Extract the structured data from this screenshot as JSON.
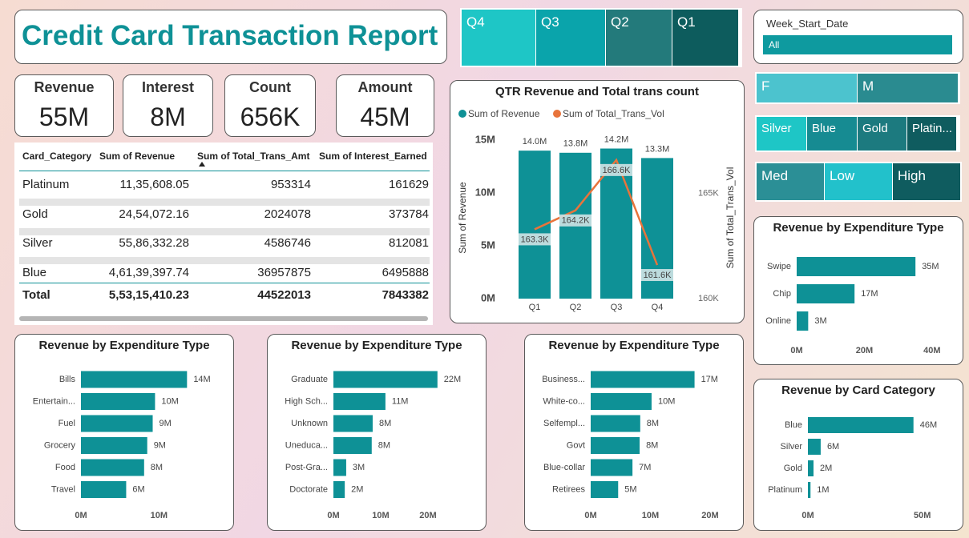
{
  "header": {
    "title": "Credit Card Transaction Report"
  },
  "kpis": [
    {
      "label": "Revenue",
      "value": "55M"
    },
    {
      "label": "Interest",
      "value": "8M"
    },
    {
      "label": "Count",
      "value": "656K"
    },
    {
      "label": "Amount",
      "value": "45M"
    }
  ],
  "quarter_slicer": {
    "items": [
      "Q4",
      "Q3",
      "Q2",
      "Q1"
    ],
    "colors": [
      "#1ec6c6",
      "#0aa4ab",
      "#237a7b",
      "#0d5c5d"
    ]
  },
  "date_slicer": {
    "label": "Week_Start_Date",
    "value": "All"
  },
  "gender_slicer": {
    "items": [
      "F",
      "M"
    ],
    "colors": [
      "#4cc3ce",
      "#2a8b90"
    ]
  },
  "category_slicer": {
    "items": [
      "Silver",
      "Blue",
      "Gold",
      "Platin..."
    ],
    "colors": [
      "#1ec6c6",
      "#168b92",
      "#1c7a7f",
      "#0f5c5f"
    ]
  },
  "income_slicer": {
    "items": [
      "Med",
      "Low",
      "High"
    ],
    "colors": [
      "#2b8f96",
      "#22c1cb",
      "#0f5c5f"
    ]
  },
  "table": {
    "columns": [
      "Card_Category",
      "Sum of Revenue",
      "Sum of Total_Trans_Amt",
      "Sum of Interest_Earned"
    ],
    "rows": [
      [
        "Platinum",
        "11,35,608.05",
        "953314",
        "161629"
      ],
      [
        "Gold",
        "24,54,072.16",
        "2024078",
        "373784"
      ],
      [
        "Silver",
        "55,86,332.28",
        "4586746",
        "812081"
      ],
      [
        "Blue",
        "4,61,39,397.74",
        "36957875",
        "6495888"
      ]
    ],
    "total": [
      "Total",
      "5,53,15,410.23",
      "44522013",
      "7843382"
    ]
  },
  "chart_data": [
    {
      "type": "combo",
      "title": "QTR Revenue and Total trans count",
      "categories": [
        "Q1",
        "Q2",
        "Q3",
        "Q4"
      ],
      "y_label": "Sum of Revenue",
      "y2_label": "Sum of Total_Trans_Vol",
      "series": [
        {
          "name": "Sum of Revenue",
          "kind": "bar",
          "color": "#0e9196",
          "values": [
            14000000,
            13800000,
            14200000,
            13300000
          ],
          "value_labels": [
            "14.0M",
            "13.8M",
            "14.2M",
            "13.3M"
          ]
        },
        {
          "name": "Sum of Total_Trans_Vol",
          "kind": "line",
          "axis": "y2",
          "color": "#e8743b",
          "values": [
            163300,
            164200,
            166600,
            161600
          ],
          "value_labels": [
            "163.3K",
            "164.2K",
            "166.6K",
            "161.6K"
          ]
        }
      ],
      "ylim": [
        0,
        15300000
      ],
      "yticks": [
        {
          "value": 0,
          "label": "0M"
        },
        {
          "value": 5000000,
          "label": "5M"
        },
        {
          "value": 10000000,
          "label": "10M"
        },
        {
          "value": 15000000,
          "label": "15M"
        }
      ],
      "y2lim": [
        160000,
        167700
      ],
      "y2ticks": [
        {
          "value": 160000,
          "label": "160K"
        },
        {
          "value": 165000,
          "label": "165K"
        }
      ]
    },
    {
      "type": "bar",
      "orientation": "horizontal",
      "title": "Revenue by Expenditure Type",
      "color": "#0e9196",
      "categories": [
        "Swipe",
        "Chip",
        "Online"
      ],
      "values": [
        35100000,
        17100000,
        3400000
      ],
      "value_labels": [
        "35M",
        "17M",
        "3M"
      ],
      "xlim": [
        0,
        45000000
      ],
      "xticks": [
        {
          "value": 0,
          "label": "0M"
        },
        {
          "value": 20000000,
          "label": "20M"
        },
        {
          "value": 40000000,
          "label": "40M"
        }
      ]
    },
    {
      "type": "bar",
      "orientation": "horizontal",
      "title": "Revenue by Card Category",
      "color": "#0e9196",
      "categories": [
        "Blue",
        "Silver",
        "Gold",
        "Platinum"
      ],
      "values": [
        46139397.74,
        5586332.28,
        2454072.16,
        1135608.05
      ],
      "value_labels": [
        "46M",
        "6M",
        "2M",
        "1M"
      ],
      "xlim": [
        0,
        62000000
      ],
      "xticks": [
        {
          "value": 0,
          "label": "0M"
        },
        {
          "value": 50000000,
          "label": "50M"
        }
      ]
    },
    {
      "type": "bar",
      "orientation": "horizontal",
      "title": "Revenue by Expenditure Type",
      "color": "#0e9196",
      "categories": [
        "Bills",
        "Entertain...",
        "Fuel",
        "Grocery",
        "Food",
        "Travel"
      ],
      "values": [
        13600000,
        9500000,
        9200000,
        8500000,
        8100000,
        5800000
      ],
      "value_labels": [
        "14M",
        "10M",
        "9M",
        "9M",
        "8M",
        "6M"
      ],
      "xlim": [
        0,
        18500000
      ],
      "xticks": [
        {
          "value": 0,
          "label": "0M"
        },
        {
          "value": 10000000,
          "label": "10M"
        }
      ]
    },
    {
      "type": "bar",
      "orientation": "horizontal",
      "title": "Revenue by Expenditure Type",
      "color": "#0e9196",
      "categories": [
        "Graduate",
        "High Sch...",
        "Unknown",
        "Uneduca...",
        "Post-Gra...",
        "Doctorate"
      ],
      "values": [
        22000000,
        11000000,
        8300000,
        8100000,
        2700000,
        2400000
      ],
      "value_labels": [
        "22M",
        "11M",
        "8M",
        "8M",
        "3M",
        "2M"
      ],
      "xlim": [
        0,
        30000000
      ],
      "xticks": [
        {
          "value": 0,
          "label": "0M"
        },
        {
          "value": 10000000,
          "label": "10M"
        },
        {
          "value": 20000000,
          "label": "20M"
        }
      ]
    },
    {
      "type": "bar",
      "orientation": "horizontal",
      "title": "Revenue by Expenditure Type",
      "color": "#0e9196",
      "categories": [
        "Business...",
        "White-co...",
        "Selfempl...",
        "Govt",
        "Blue-collar",
        "Retirees"
      ],
      "values": [
        17400000,
        10200000,
        8300000,
        8200000,
        7000000,
        4600000
      ],
      "value_labels": [
        "17M",
        "10M",
        "8M",
        "8M",
        "7M",
        "5M"
      ],
      "xlim": [
        0,
        23500000
      ],
      "xticks": [
        {
          "value": 0,
          "label": "0M"
        },
        {
          "value": 10000000,
          "label": "10M"
        },
        {
          "value": 20000000,
          "label": "20M"
        }
      ]
    }
  ]
}
